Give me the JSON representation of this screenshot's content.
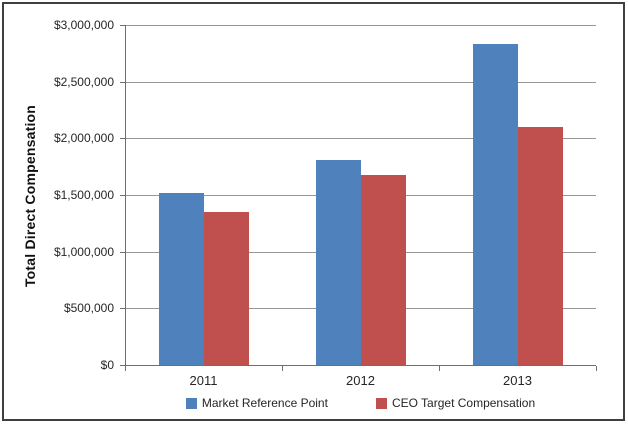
{
  "chart_data": {
    "type": "bar",
    "title": "",
    "categories": [
      "2011",
      "2012",
      "2013"
    ],
    "series": [
      {
        "name": "Market Reference Point",
        "color": "#4F81BD",
        "values": [
          1520000,
          1810000,
          2830000
        ]
      },
      {
        "name": "CEO Target Compensation",
        "color": "#C0504D",
        "values": [
          1350000,
          1680000,
          2100000
        ]
      }
    ],
    "xlabel": "",
    "ylabel": "Total Direct Compensation",
    "ylim": [
      0,
      3000000
    ],
    "y_tick_step": 500000,
    "y_tick_labels": [
      "$0",
      "$500,000",
      "$1,000,000",
      "$1,500,000",
      "$2,000,000",
      "$2,500,000",
      "$3,000,000"
    ],
    "grid": "horizontal",
    "legend_position": "bottom",
    "colors": {
      "axis": "#6f6f6f",
      "gridline": "#969696",
      "frame_border": "#3f3f3f",
      "label_text": "#262626"
    }
  }
}
